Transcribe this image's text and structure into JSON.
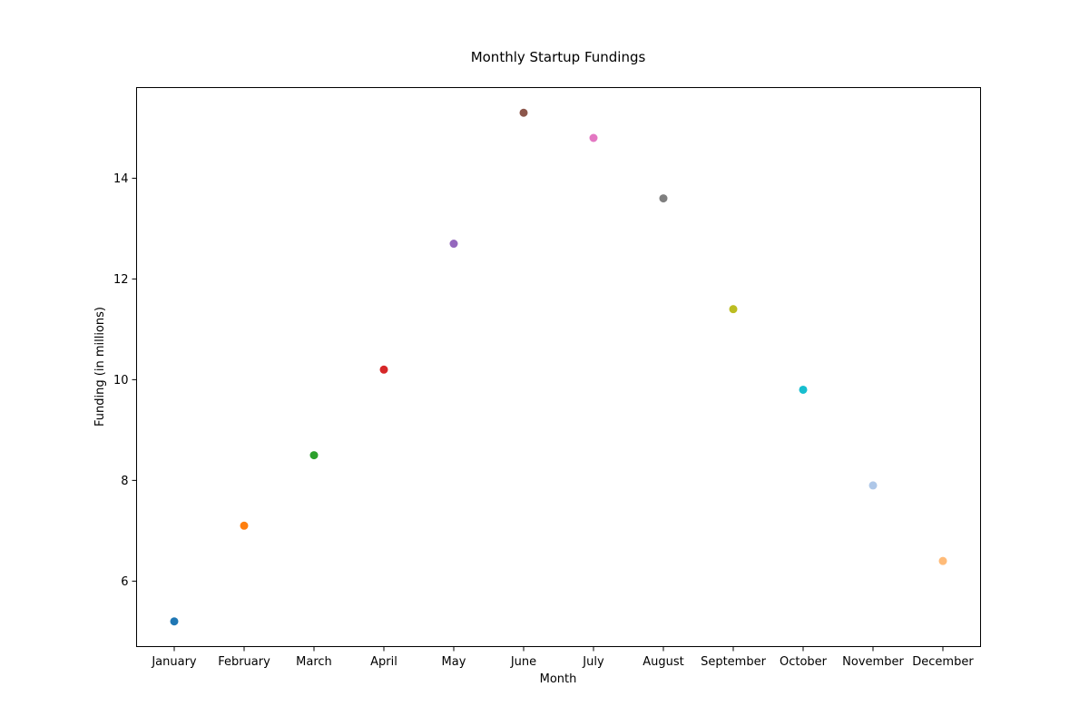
{
  "chart_data": {
    "type": "scatter",
    "title": "Monthly Startup Fundings",
    "xlabel": "Month",
    "ylabel": "Funding (in millions)",
    "categories": [
      "January",
      "February",
      "March",
      "April",
      "May",
      "June",
      "July",
      "August",
      "September",
      "October",
      "November",
      "December"
    ],
    "values": [
      5.2,
      7.1,
      8.5,
      10.2,
      12.7,
      15.3,
      14.8,
      13.6,
      11.4,
      9.8,
      7.9,
      6.4
    ],
    "colors": [
      "#1f77b4",
      "#ff7f0e",
      "#2ca02c",
      "#d62728",
      "#9467bd",
      "#8c564b",
      "#e377c2",
      "#7f7f7f",
      "#bcbd22",
      "#17becf",
      "#aec7e8",
      "#ffbb78"
    ],
    "yticks": [
      6,
      8,
      10,
      12,
      14
    ],
    "ylim": [
      4.7,
      15.8
    ],
    "grid": false,
    "legend": "none"
  }
}
